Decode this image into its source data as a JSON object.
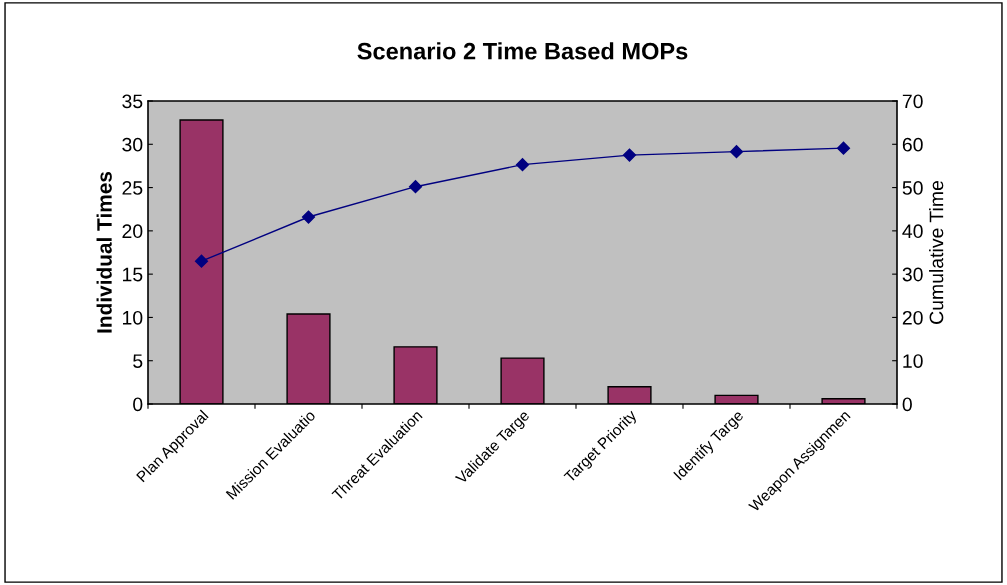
{
  "chart_data": {
    "type": "bar",
    "title": "Scenario 2 Time Based MOPs",
    "categories": [
      "Plan Approval",
      "Mission Evaluatio",
      "Threat Evaluation",
      "Validate Targe",
      "Target Priority",
      "Identify Targe",
      "Weapon Assignmen"
    ],
    "series": [
      {
        "color": "#993366",
        "values": [
          32.8,
          10.4,
          6.6,
          5.3,
          2.0,
          1.0,
          0.6
        ]
      },
      {
        "type": "line",
        "axis": "y2",
        "color": "#000080",
        "marker": "diamond",
        "values": [
          33.0,
          43.2,
          50.2,
          55.3,
          57.5,
          58.3,
          59.1
        ]
      }
    ],
    "ylabel": "Individual Times",
    "y2label": "Cumulative Time",
    "ylim": [
      0,
      35
    ],
    "yticks": [
      0,
      5,
      10,
      15,
      20,
      25,
      30,
      35
    ],
    "y2lim": [
      0,
      70
    ],
    "y2ticks": [
      0,
      10,
      20,
      30,
      40,
      50,
      60,
      70
    ],
    "grid": false,
    "legend": false
  }
}
